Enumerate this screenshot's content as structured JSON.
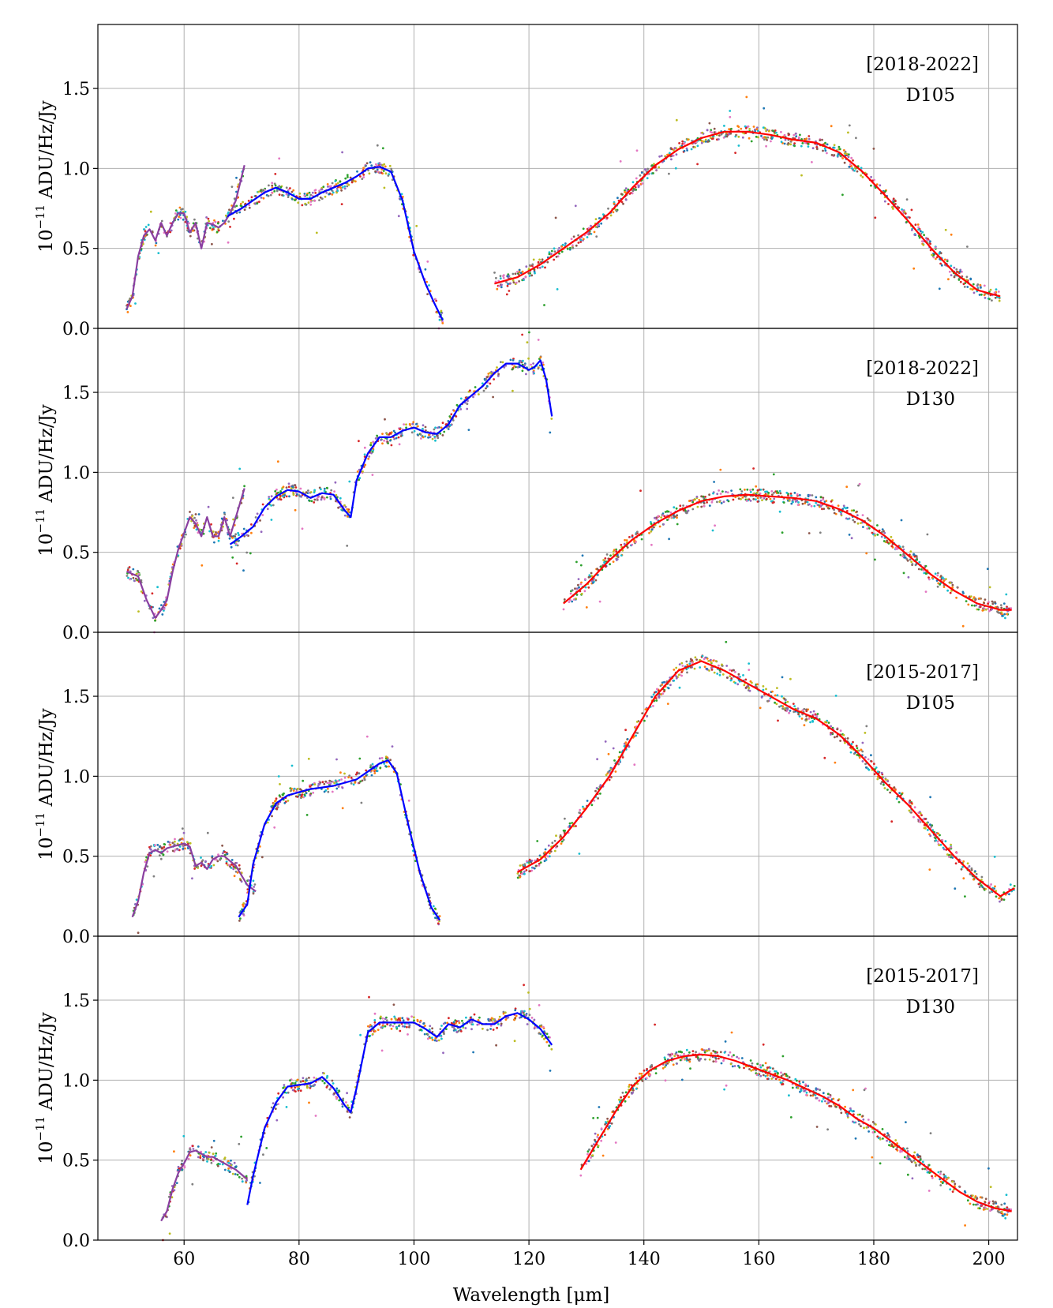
{
  "chart_data": {
    "type": "line",
    "xlabel": "Wavelength [μm]",
    "ylabel_prefix": "10",
    "ylabel_exponent": "−11",
    "ylabel_suffix": " ADU/Hz/Jy",
    "xlim": [
      45,
      205
    ],
    "ylim": [
      0,
      1.9
    ],
    "xticks": [
      60,
      80,
      100,
      120,
      140,
      160,
      180,
      200
    ],
    "yticks": [
      0.0,
      0.5,
      1.0,
      1.5
    ],
    "ytick_labels": [
      "0.0",
      "0.5",
      "1.0",
      "1.5"
    ],
    "grid": true,
    "series_colors": {
      "blue_camera": "#0000ff",
      "red_camera": "#ff0000"
    },
    "panels": [
      {
        "label_years": "[2018-2022]",
        "label_filter": "D105",
        "series": [
          {
            "color": "#8a3fa0",
            "x": [
              50,
              51,
              52,
              53,
              54,
              55,
              56,
              57,
              58,
              59,
              60,
              61,
              62,
              63,
              64,
              65,
              66,
              67,
              68,
              69,
              70.5
            ],
            "y": [
              0.12,
              0.2,
              0.45,
              0.58,
              0.62,
              0.55,
              0.66,
              0.58,
              0.66,
              0.72,
              0.72,
              0.6,
              0.66,
              0.5,
              0.66,
              0.65,
              0.63,
              0.66,
              0.72,
              0.8,
              1.02
            ]
          },
          {
            "color": "#0000ff",
            "x": [
              67.5,
              70,
              72,
              74,
              76,
              78,
              80,
              82,
              84,
              86,
              88,
              90,
              92,
              94,
              96,
              98,
              100,
              102,
              103.5,
              105
            ],
            "y": [
              0.7,
              0.75,
              0.8,
              0.85,
              0.88,
              0.85,
              0.81,
              0.81,
              0.85,
              0.88,
              0.91,
              0.95,
              1.0,
              1.01,
              0.98,
              0.8,
              0.48,
              0.28,
              0.16,
              0.05
            ]
          },
          {
            "color": "#ff0000",
            "x": [
              114,
              118,
              122,
              126,
              130,
              134,
              138,
              142,
              146,
              150,
              154,
              158,
              162,
              166,
              170,
              174,
              178,
              182,
              186,
              190,
              194,
              198,
              202
            ],
            "y": [
              0.28,
              0.32,
              0.4,
              0.5,
              0.6,
              0.72,
              0.88,
              1.02,
              1.12,
              1.19,
              1.23,
              1.23,
              1.21,
              1.18,
              1.16,
              1.1,
              0.98,
              0.83,
              0.67,
              0.5,
              0.35,
              0.24,
              0.2
            ]
          }
        ]
      },
      {
        "label_years": "[2018-2022]",
        "label_filter": "D130",
        "series": [
          {
            "color": "#8a3fa0",
            "x": [
              50,
              52,
              53.5,
              55,
              56,
              57,
              58,
              59,
              60,
              61,
              62,
              63,
              64,
              65,
              66,
              67,
              68,
              69,
              70.5
            ],
            "y": [
              0.38,
              0.35,
              0.2,
              0.09,
              0.14,
              0.2,
              0.38,
              0.52,
              0.62,
              0.72,
              0.68,
              0.6,
              0.72,
              0.6,
              0.6,
              0.72,
              0.6,
              0.72,
              0.9
            ]
          },
          {
            "color": "#0000ff",
            "x": [
              68,
              70,
              72,
              74,
              76,
              78,
              80,
              82,
              84,
              86,
              88,
              89,
              90,
              92,
              94,
              96,
              98,
              100,
              102,
              104,
              106,
              108,
              110,
              112,
              114,
              116,
              118,
              120,
              121,
              122,
              123,
              124
            ],
            "y": [
              0.55,
              0.6,
              0.66,
              0.78,
              0.85,
              0.89,
              0.88,
              0.84,
              0.87,
              0.86,
              0.76,
              0.72,
              0.95,
              1.12,
              1.22,
              1.22,
              1.26,
              1.28,
              1.25,
              1.24,
              1.3,
              1.42,
              1.48,
              1.54,
              1.62,
              1.68,
              1.68,
              1.64,
              1.66,
              1.7,
              1.58,
              1.35
            ]
          },
          {
            "color": "#ff0000",
            "x": [
              126,
              130,
              134,
              138,
              142,
              146,
              150,
              154,
              158,
              162,
              166,
              170,
              174,
              178,
              182,
              186,
              190,
              194,
              198,
              202,
              204
            ],
            "y": [
              0.18,
              0.3,
              0.45,
              0.58,
              0.68,
              0.76,
              0.82,
              0.85,
              0.86,
              0.85,
              0.84,
              0.82,
              0.77,
              0.7,
              0.6,
              0.48,
              0.36,
              0.26,
              0.18,
              0.14,
              0.14
            ]
          }
        ]
      },
      {
        "label_years": "[2015-2017]",
        "label_filter": "D105",
        "series": [
          {
            "color": "#8a3fa0",
            "x": [
              51,
              52,
              53,
              54,
              55,
              56,
              57,
              58,
              59,
              60,
              61,
              62,
              63,
              64,
              65,
              66,
              67,
              68,
              69,
              70,
              71,
              72.5
            ],
            "y": [
              0.12,
              0.22,
              0.4,
              0.52,
              0.54,
              0.52,
              0.55,
              0.56,
              0.57,
              0.58,
              0.56,
              0.44,
              0.46,
              0.42,
              0.48,
              0.5,
              0.5,
              0.47,
              0.44,
              0.38,
              0.32,
              0.28
            ]
          },
          {
            "color": "#0000ff",
            "x": [
              69.5,
              71,
              72,
              74,
              76,
              78,
              80,
              82,
              84,
              86,
              88,
              90,
              92,
              94,
              95.5,
              97,
              99,
              101,
              103,
              104.5
            ],
            "y": [
              0.12,
              0.2,
              0.45,
              0.7,
              0.83,
              0.88,
              0.9,
              0.92,
              0.93,
              0.94,
              0.96,
              0.98,
              1.03,
              1.08,
              1.1,
              1.02,
              0.7,
              0.4,
              0.18,
              0.1
            ]
          },
          {
            "color": "#ff0000",
            "x": [
              118,
              122,
              126,
              130,
              134,
              138,
              142,
              146,
              150,
              154,
              158,
              162,
              166,
              170,
              174,
              178,
              182,
              186,
              190,
              194,
              198,
              202,
              204.5
            ],
            "y": [
              0.4,
              0.48,
              0.62,
              0.8,
              1.0,
              1.25,
              1.5,
              1.66,
              1.72,
              1.66,
              1.58,
              1.5,
              1.42,
              1.36,
              1.26,
              1.12,
              0.96,
              0.82,
              0.66,
              0.5,
              0.36,
              0.25,
              0.3
            ]
          }
        ]
      },
      {
        "label_years": "[2015-2017]",
        "label_filter": "D130",
        "series": [
          {
            "color": "#8a3fa0",
            "x": [
              56,
              57,
              58,
              59,
              60,
              61,
              62,
              63,
              64,
              65,
              66,
              67,
              68,
              69,
              70,
              71
            ],
            "y": [
              0.12,
              0.18,
              0.32,
              0.42,
              0.48,
              0.55,
              0.56,
              0.54,
              0.52,
              0.52,
              0.5,
              0.48,
              0.46,
              0.44,
              0.41,
              0.38
            ]
          },
          {
            "color": "#0000ff",
            "x": [
              71,
              72,
              74,
              76,
              78,
              80,
              82,
              84,
              86,
              88,
              89,
              90,
              92,
              94,
              96,
              98,
              100,
              102,
              104,
              106,
              108,
              110,
              112,
              114,
              116,
              118,
              120,
              122,
              124
            ],
            "y": [
              0.22,
              0.4,
              0.7,
              0.86,
              0.96,
              0.97,
              0.98,
              1.02,
              0.95,
              0.84,
              0.8,
              0.95,
              1.3,
              1.36,
              1.36,
              1.36,
              1.36,
              1.32,
              1.27,
              1.35,
              1.33,
              1.38,
              1.35,
              1.35,
              1.4,
              1.42,
              1.38,
              1.32,
              1.22
            ]
          },
          {
            "color": "#ff0000",
            "x": [
              129,
              132,
              135,
              138,
              141,
              144,
              147,
              150,
              153,
              156,
              159,
              162,
              165,
              168,
              171,
              174,
              177,
              180,
              183,
              186,
              189,
              192,
              195,
              198,
              201,
              204
            ],
            "y": [
              0.44,
              0.62,
              0.8,
              0.96,
              1.06,
              1.12,
              1.15,
              1.16,
              1.15,
              1.12,
              1.08,
              1.04,
              1.0,
              0.95,
              0.9,
              0.84,
              0.76,
              0.7,
              0.62,
              0.54,
              0.46,
              0.38,
              0.3,
              0.24,
              0.2,
              0.18
            ]
          }
        ]
      }
    ]
  }
}
